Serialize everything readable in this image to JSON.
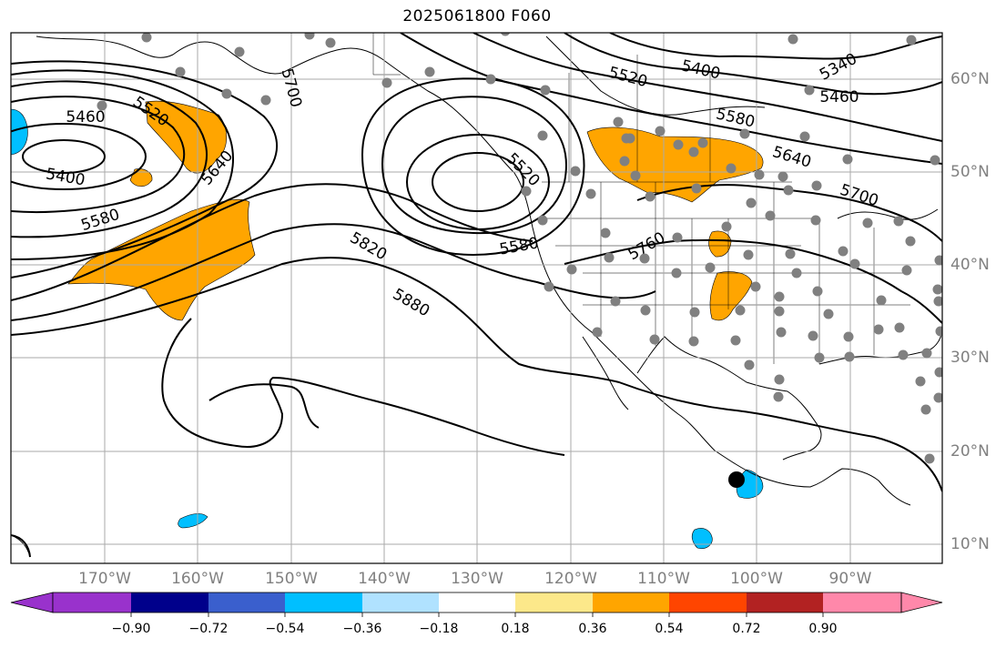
{
  "title": "2025061800 F060",
  "lat_labels": [
    "60°N",
    "50°N",
    "40°N",
    "30°N",
    "20°N",
    "10°N"
  ],
  "lon_labels": [
    "170°W",
    "160°W",
    "150°W",
    "140°W",
    "130°W",
    "120°W",
    "110°W",
    "100°W",
    "90°W"
  ],
  "contour_labels": [
    "5340",
    "5400",
    "5400",
    "5460",
    "5460",
    "5520",
    "5520",
    "5520",
    "5580",
    "5580",
    "5580",
    "5640",
    "5640",
    "5700",
    "5700",
    "5760",
    "5820",
    "5880"
  ],
  "colorbar": {
    "tick_labels": [
      "−0.90",
      "−0.72",
      "−0.54",
      "−0.36",
      "−0.18",
      "0.18",
      "0.36",
      "0.54",
      "0.72",
      "0.90"
    ],
    "colors": [
      "#9932cc",
      "#00008b",
      "#3a5fcd",
      "#00bfff",
      "#b0e2ff",
      "#ffffff",
      "#fce88a",
      "#ffa500",
      "#ff4500",
      "#b22222",
      "#ff88aa"
    ]
  },
  "colors": {
    "positive_anomaly": "#ffa500",
    "negative_anomaly": "#00bfff",
    "stations": "#808080",
    "grid": "#aaaaaa"
  },
  "marker": "black-dot"
}
